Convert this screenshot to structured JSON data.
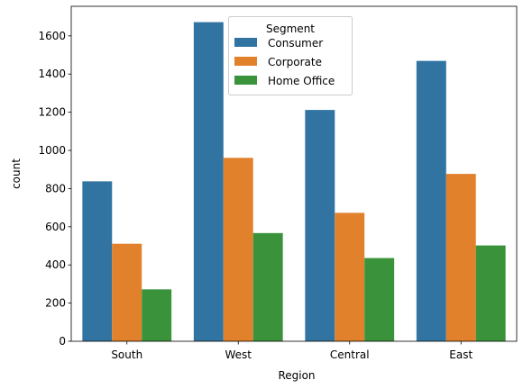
{
  "chart_data": {
    "type": "bar",
    "title": "",
    "xlabel": "Region",
    "ylabel": "count",
    "categories": [
      "South",
      "West",
      "Central",
      "East"
    ],
    "series": [
      {
        "name": "Consumer",
        "values": [
          838,
          1672,
          1212,
          1469
        ],
        "color": "#3274a1"
      },
      {
        "name": "Corporate",
        "values": [
          511,
          961,
          673,
          877
        ],
        "color": "#e1812c"
      },
      {
        "name": "Home Office",
        "values": [
          272,
          567,
          436,
          502
        ],
        "color": "#3a923a"
      }
    ],
    "ylim": [
      0,
      1755
    ],
    "yticks": [
      0,
      200,
      400,
      600,
      800,
      1000,
      1200,
      1400,
      1600
    ],
    "grid": false,
    "legend": {
      "title": "Segment",
      "placement": "top-center"
    }
  }
}
